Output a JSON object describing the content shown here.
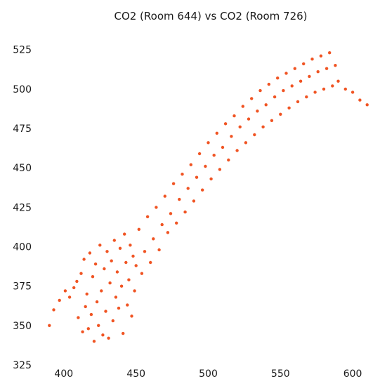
{
  "chart_data": {
    "type": "scatter",
    "title": "CO2 (Room 644) vs CO2 (Room 726)",
    "xlabel": "",
    "ylabel": "",
    "xlim": [
      385,
      616
    ],
    "ylim": [
      325,
      532
    ],
    "x_ticks": [
      400,
      450,
      500,
      550,
      600
    ],
    "y_ticks": [
      325,
      350,
      375,
      400,
      425,
      450,
      475,
      500,
      525
    ],
    "grid": false,
    "legend": "none",
    "colors": {
      "point": "#F05423"
    },
    "series": [
      {
        "x": [
          390,
          393,
          397,
          401,
          404,
          407,
          409,
          410,
          412,
          413,
          414,
          415,
          416,
          417,
          418,
          419,
          420,
          421,
          422,
          423,
          424,
          425,
          426,
          427,
          428,
          429,
          430,
          431,
          432,
          433,
          434,
          435,
          436,
          437,
          438,
          439,
          440,
          441,
          442,
          443,
          444,
          445,
          446,
          447,
          448,
          449,
          450,
          452,
          454,
          456,
          458,
          460,
          462,
          464,
          466,
          468,
          470,
          472,
          474,
          476,
          478,
          480,
          482,
          484,
          486,
          488,
          490,
          492,
          494,
          496,
          498,
          500,
          502,
          504,
          506,
          508,
          510,
          512,
          514,
          516,
          518,
          520,
          522,
          524,
          526,
          528,
          530,
          532,
          534,
          536,
          538,
          540,
          542,
          544,
          546,
          548,
          550,
          552,
          554,
          556,
          558,
          560,
          562,
          564,
          566,
          568,
          570,
          572,
          574,
          576,
          578,
          580,
          582,
          584,
          586,
          588,
          590,
          595,
          600,
          605,
          610
        ],
        "y": [
          350,
          360,
          366,
          372,
          368,
          374,
          378,
          355,
          383,
          346,
          392,
          362,
          370,
          348,
          396,
          357,
          381,
          340,
          389,
          365,
          350,
          401,
          372,
          344,
          386,
          359,
          397,
          342,
          377,
          391,
          353,
          404,
          368,
          384,
          361,
          399,
          375,
          345,
          408,
          390,
          363,
          379,
          401,
          356,
          394,
          372,
          388,
          411,
          383,
          397,
          419,
          390,
          405,
          425,
          398,
          414,
          432,
          409,
          421,
          440,
          415,
          430,
          446,
          422,
          437,
          452,
          429,
          444,
          459,
          436,
          451,
          466,
          443,
          458,
          472,
          449,
          463,
          478,
          455,
          470,
          483,
          461,
          476,
          489,
          466,
          481,
          494,
          471,
          486,
          499,
          476,
          490,
          503,
          480,
          495,
          507,
          484,
          499,
          510,
          488,
          502,
          513,
          492,
          505,
          516,
          495,
          508,
          519,
          498,
          511,
          521,
          500,
          513,
          523,
          502,
          515,
          505,
          500,
          498,
          493,
          490
        ]
      }
    ]
  }
}
